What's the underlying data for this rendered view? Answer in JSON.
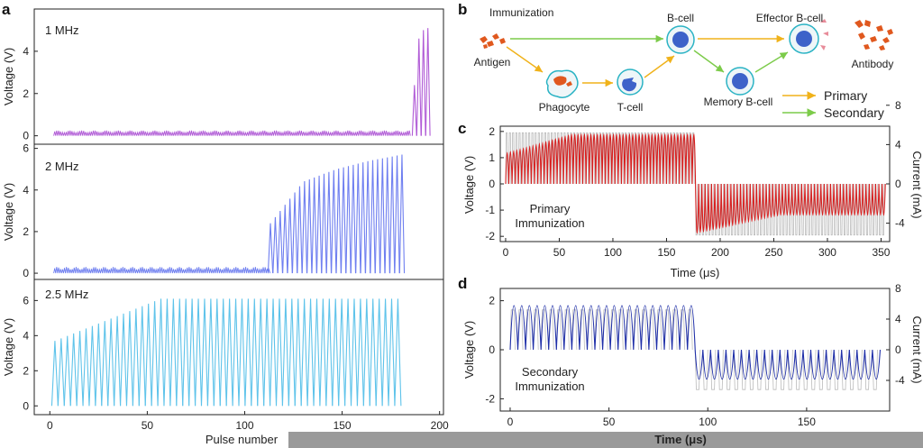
{
  "panel_labels": {
    "a": "a",
    "b": "b",
    "c": "c",
    "d": "d"
  },
  "chart_data": [
    {
      "id": "a",
      "type": "line",
      "subplots": [
        {
          "label": "1 MHz",
          "ylabel": "Voltage (V)",
          "ylim": [
            -0.4,
            6
          ],
          "yticks": [
            0,
            2,
            4
          ],
          "color": "#b05ad6",
          "baseline_pulses": 185,
          "baseline_amp": 0.25,
          "peaks": [
            2.4,
            4.6,
            5.0,
            5.1
          ]
        },
        {
          "label": "2 MHz",
          "ylabel": "Voltage (V)",
          "ylim": [
            -0.3,
            6.2
          ],
          "yticks": [
            0,
            2,
            4,
            6
          ],
          "color": "#6f7ff0",
          "baseline_pulses": 111,
          "baseline_amp": 0.3,
          "rise_start": 112,
          "rise_end": 180,
          "rise_values": [
            2.4,
            4.4,
            5.0,
            5.4,
            5.7
          ]
        },
        {
          "label": "2.5 MHz",
          "ylabel": "Voltage (V)",
          "ylim": [
            -0.5,
            7.2
          ],
          "yticks": [
            0,
            2,
            4,
            6
          ],
          "color": "#5ec3ea",
          "pulses": 175,
          "start_value": 3.7,
          "plateau_value": 6.1
        }
      ],
      "xlabel": "Pulse number",
      "xlim": [
        -8,
        202
      ],
      "xticks": [
        0,
        50,
        100,
        150,
        200
      ]
    },
    {
      "id": "b",
      "type": "diagram",
      "nodes": [
        "Immunization",
        "Antigen",
        "Phagocyte",
        "T-cell",
        "B-cell",
        "Memory B-cell",
        "Effector B-cell",
        "Antibody"
      ],
      "legend": [
        {
          "label": "Primary",
          "color": "#f0b21a"
        },
        {
          "label": "Secondary",
          "color": "#7ccb4a"
        }
      ]
    },
    {
      "id": "c",
      "type": "line",
      "annotation": [
        "Primary",
        "Immunization"
      ],
      "xlabel": "Time (μs)",
      "ylabel": "Voltage (V)",
      "y2label": "Current (mA)",
      "xlim": [
        -5,
        358
      ],
      "ylim": [
        -2.2,
        2.2
      ],
      "y2lim": [
        -5.87,
        5.87
      ],
      "xticks": [
        0,
        50,
        100,
        150,
        200,
        250,
        300,
        350
      ],
      "yticks": [
        -2,
        -1,
        0,
        1,
        2
      ],
      "y2ticks": [
        -4,
        0,
        4,
        8
      ],
      "series": [
        {
          "axis": "voltage",
          "color": "#d62020",
          "switch_time": 175,
          "positive_start": 1.2,
          "positive_plateau": 1.9,
          "negative_start": -1.9,
          "negative_plateau": -1.2
        },
        {
          "axis": "current",
          "color": "#bbbbbb",
          "amplitude": 5.2
        }
      ]
    },
    {
      "id": "d",
      "type": "line",
      "annotation": [
        "Secondary",
        "Immunization"
      ],
      "xlabel": "Time (μs)",
      "ylabel": "Voltage (V)",
      "y2label": "Current (mA)",
      "xlim": [
        -5,
        192
      ],
      "ylim": [
        -2.5,
        2.5
      ],
      "y2lim": [
        -8,
        8
      ],
      "xticks": [
        0,
        50,
        100,
        150
      ],
      "yticks": [
        -2,
        0,
        2
      ],
      "y2ticks": [
        -4,
        0,
        4,
        8
      ],
      "series": [
        {
          "axis": "voltage",
          "color": "#1f2fa8",
          "switch_time": 92,
          "positive_peak": 1.8,
          "negative_peak": -1.2
        },
        {
          "axis": "current",
          "color": "#bbbbbb",
          "amplitude": 5.2
        }
      ]
    }
  ]
}
